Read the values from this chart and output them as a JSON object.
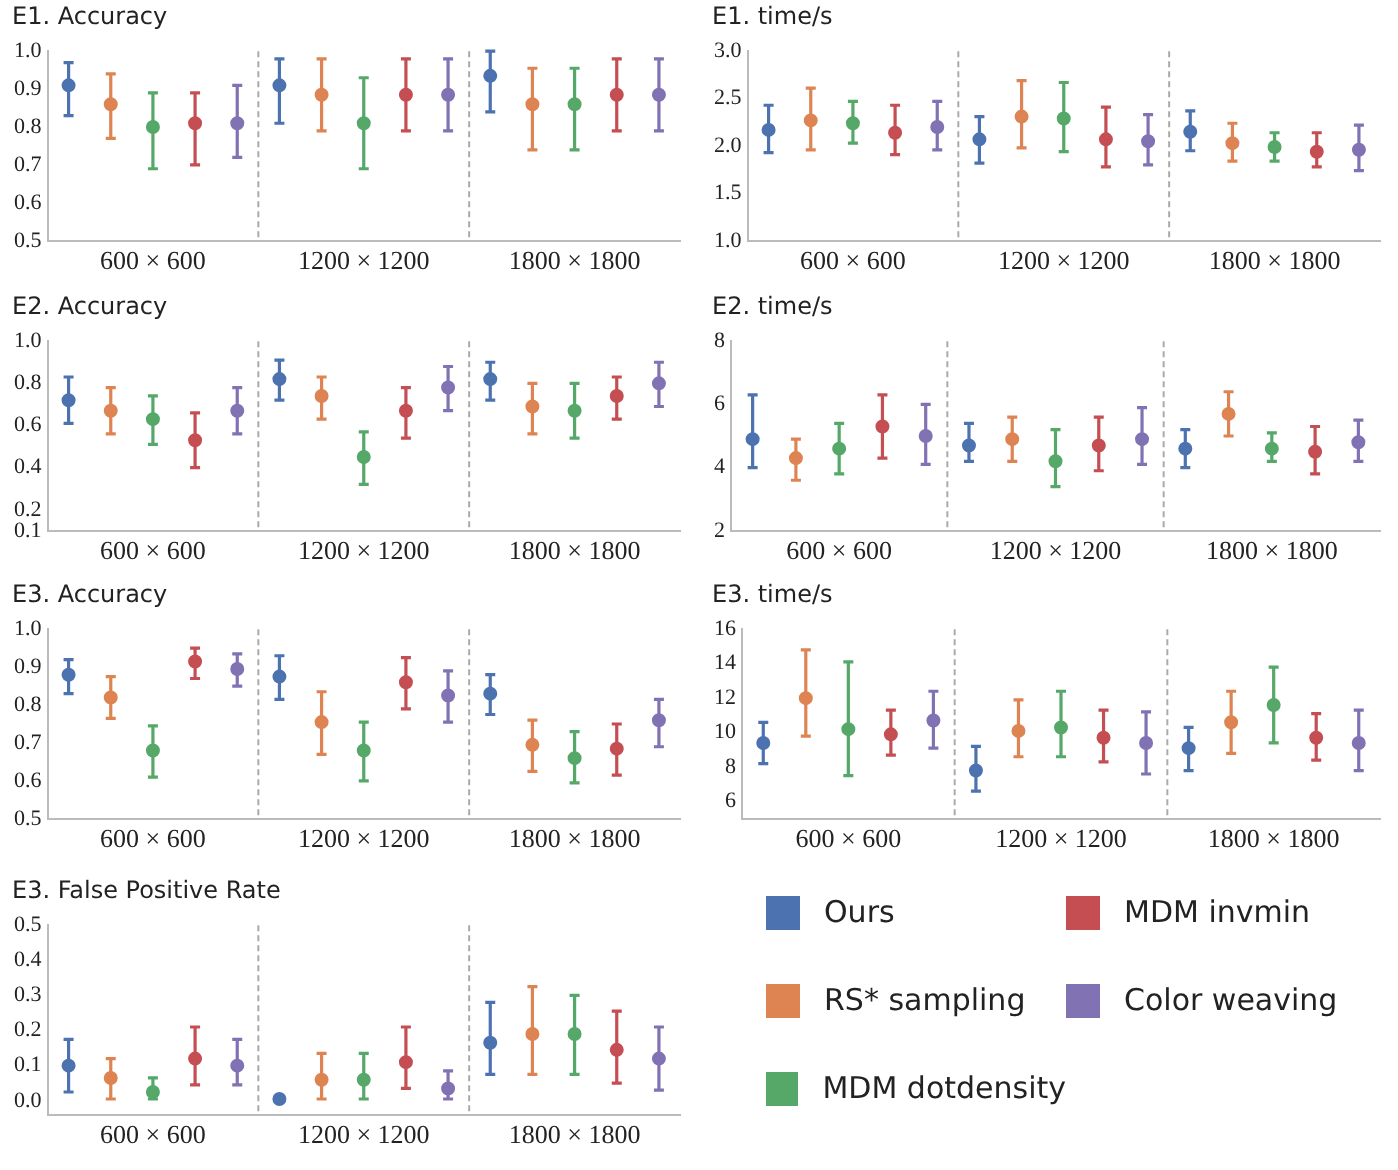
{
  "chart_data": [
    {
      "type": "scatter",
      "title": "E1. Accuracy",
      "categories": [
        "600 × 600",
        "1200 × 1200",
        "1800 × 1800"
      ],
      "marker": "circle",
      "ylim": [
        0.5,
        1.0
      ],
      "yticks": [
        0.5,
        0.6,
        0.7,
        0.8,
        0.9,
        {
          "value": 1,
          "label": "1.0"
        }
      ],
      "series": [
        {
          "color": "#4c72b0",
          "values": [
            0.91,
            0.91,
            0.935
          ],
          "errors": [
            [
              0.83,
              0.97
            ],
            [
              0.81,
              0.98
            ],
            [
              0.84,
              1.0
            ]
          ]
        },
        {
          "color": "#dd8452",
          "values": [
            0.86,
            0.885,
            0.86
          ],
          "errors": [
            [
              0.77,
              0.94
            ],
            [
              0.79,
              0.98
            ],
            [
              0.74,
              0.955
            ]
          ]
        },
        {
          "color": "#55a868",
          "values": [
            0.8,
            0.81,
            0.86
          ],
          "errors": [
            [
              0.69,
              0.89
            ],
            [
              0.69,
              0.93
            ],
            [
              0.74,
              0.955
            ]
          ]
        },
        {
          "color": "#c44e52",
          "values": [
            0.81,
            0.885,
            0.885
          ],
          "errors": [
            [
              0.7,
              0.89
            ],
            [
              0.79,
              0.98
            ],
            [
              0.79,
              0.98
            ]
          ]
        },
        {
          "color": "#8172b3",
          "values": [
            0.81,
            0.885,
            0.885
          ],
          "errors": [
            [
              0.72,
              0.91
            ],
            [
              0.79,
              0.98
            ],
            [
              0.79,
              0.98
            ]
          ]
        }
      ]
    },
    {
      "type": "scatter",
      "title": "E1. time/s",
      "categories": [
        "600 × 600",
        "1200 × 1200",
        "1800 × 1800"
      ],
      "marker": "circle",
      "ylim": [
        1.0,
        3.0
      ],
      "yticks": [
        {
          "value": 1,
          "label": "1.0"
        },
        1.5,
        {
          "value": 2,
          "label": "2.0"
        },
        2.5,
        {
          "value": 3,
          "label": "3.0"
        }
      ],
      "series": [
        {
          "color": "#4c72b0",
          "values": [
            2.17,
            2.07,
            2.15
          ],
          "errors": [
            [
              1.93,
              2.43
            ],
            [
              1.82,
              2.31
            ],
            [
              1.95,
              2.37
            ]
          ]
        },
        {
          "color": "#dd8452",
          "values": [
            2.27,
            2.31,
            2.03
          ],
          "errors": [
            [
              1.96,
              2.61
            ],
            [
              1.98,
              2.69
            ],
            [
              1.84,
              2.24
            ]
          ]
        },
        {
          "color": "#55a868",
          "values": [
            2.24,
            2.29,
            1.99
          ],
          "errors": [
            [
              2.03,
              2.47
            ],
            [
              1.94,
              2.67
            ],
            [
              1.84,
              2.14
            ]
          ]
        },
        {
          "color": "#c44e52",
          "values": [
            2.14,
            2.07,
            1.94
          ],
          "errors": [
            [
              1.91,
              2.43
            ],
            [
              1.78,
              2.41
            ],
            [
              1.78,
              2.14
            ]
          ]
        },
        {
          "color": "#8172b3",
          "values": [
            2.2,
            2.05,
            1.96
          ],
          "errors": [
            [
              1.96,
              2.47
            ],
            [
              1.8,
              2.33
            ],
            [
              1.74,
              2.22
            ]
          ]
        }
      ]
    },
    {
      "type": "scatter",
      "title": "E2. Accuracy",
      "categories": [
        "600 × 600",
        "1200 × 1200",
        "1800 × 1800"
      ],
      "marker": "circle",
      "ylim": [
        0.1,
        1.0
      ],
      "yticks": [
        0.1,
        0.2,
        0.4,
        0.6,
        0.8,
        {
          "value": 1,
          "label": "1.0"
        }
      ],
      "series": [
        {
          "color": "#4c72b0",
          "values": [
            0.72,
            0.82,
            0.82
          ],
          "errors": [
            [
              0.61,
              0.83
            ],
            [
              0.72,
              0.91
            ],
            [
              0.72,
              0.9
            ]
          ]
        },
        {
          "color": "#dd8452",
          "values": [
            0.67,
            0.74,
            0.69
          ],
          "errors": [
            [
              0.56,
              0.78
            ],
            [
              0.63,
              0.83
            ],
            [
              0.56,
              0.8
            ]
          ]
        },
        {
          "color": "#55a868",
          "values": [
            0.63,
            0.45,
            0.67
          ],
          "errors": [
            [
              0.51,
              0.74
            ],
            [
              0.32,
              0.57
            ],
            [
              0.54,
              0.8
            ]
          ]
        },
        {
          "color": "#c44e52",
          "values": [
            0.53,
            0.67,
            0.74
          ],
          "errors": [
            [
              0.4,
              0.66
            ],
            [
              0.54,
              0.78
            ],
            [
              0.63,
              0.83
            ]
          ]
        },
        {
          "color": "#8172b3",
          "values": [
            0.67,
            0.78,
            0.8
          ],
          "errors": [
            [
              0.56,
              0.78
            ],
            [
              0.67,
              0.88
            ],
            [
              0.69,
              0.9
            ]
          ]
        }
      ]
    },
    {
      "type": "scatter",
      "title": "E2. time/s",
      "categories": [
        "600 × 600",
        "1200 × 1200",
        "1800 × 1800"
      ],
      "marker": "circle",
      "ylim": [
        2,
        8
      ],
      "yticks": [
        2,
        4,
        6,
        8
      ],
      "series": [
        {
          "color": "#4c72b0",
          "values": [
            4.9,
            4.7,
            4.6
          ],
          "errors": [
            [
              4.0,
              6.3
            ],
            [
              4.2,
              5.4
            ],
            [
              4.0,
              5.2
            ]
          ]
        },
        {
          "color": "#dd8452",
          "values": [
            4.3,
            4.9,
            5.7
          ],
          "errors": [
            [
              3.6,
              4.9
            ],
            [
              4.2,
              5.6
            ],
            [
              5.0,
              6.4
            ]
          ]
        },
        {
          "color": "#55a868",
          "values": [
            4.6,
            4.2,
            4.6
          ],
          "errors": [
            [
              3.8,
              5.4
            ],
            [
              3.4,
              5.2
            ],
            [
              4.2,
              5.1
            ]
          ]
        },
        {
          "color": "#c44e52",
          "values": [
            5.3,
            4.7,
            4.5
          ],
          "errors": [
            [
              4.3,
              6.3
            ],
            [
              3.9,
              5.6
            ],
            [
              3.8,
              5.3
            ]
          ]
        },
        {
          "color": "#8172b3",
          "values": [
            5.0,
            4.9,
            4.8
          ],
          "errors": [
            [
              4.1,
              6.0
            ],
            [
              4.1,
              5.9
            ],
            [
              4.2,
              5.5
            ]
          ]
        }
      ]
    },
    {
      "type": "scatter",
      "title": "E3. Accuracy",
      "categories": [
        "600 × 600",
        "1200 × 1200",
        "1800 × 1800"
      ],
      "marker": "circle",
      "ylim": [
        0.5,
        1.0
      ],
      "yticks": [
        0.5,
        0.6,
        0.7,
        0.8,
        0.9,
        {
          "value": 1,
          "label": "1.0"
        }
      ],
      "series": [
        {
          "color": "#4c72b0",
          "values": [
            0.88,
            0.875,
            0.83
          ],
          "errors": [
            [
              0.83,
              0.92
            ],
            [
              0.815,
              0.93
            ],
            [
              0.775,
              0.88
            ]
          ]
        },
        {
          "color": "#dd8452",
          "values": [
            0.82,
            0.755,
            0.695
          ],
          "errors": [
            [
              0.765,
              0.875
            ],
            [
              0.67,
              0.835
            ],
            [
              0.625,
              0.76
            ]
          ]
        },
        {
          "color": "#55a868",
          "values": [
            0.68,
            0.68,
            0.66
          ],
          "errors": [
            [
              0.61,
              0.745
            ],
            [
              0.6,
              0.755
            ],
            [
              0.595,
              0.73
            ]
          ]
        },
        {
          "color": "#c44e52",
          "values": [
            0.915,
            0.86,
            0.685
          ],
          "errors": [
            [
              0.87,
              0.95
            ],
            [
              0.79,
              0.925
            ],
            [
              0.615,
              0.75
            ]
          ]
        },
        {
          "color": "#8172b3",
          "values": [
            0.895,
            0.825,
            0.76
          ],
          "errors": [
            [
              0.85,
              0.935
            ],
            [
              0.755,
              0.89
            ],
            [
              0.69,
              0.815
            ]
          ]
        }
      ]
    },
    {
      "type": "scatter",
      "title": "E3. time/s",
      "categories": [
        "600 × 600",
        "1200 × 1200",
        "1800 × 1800"
      ],
      "marker": "circle",
      "ylim": [
        5,
        16
      ],
      "yticks": [
        6,
        8,
        10,
        12,
        14,
        16
      ],
      "series": [
        {
          "color": "#4c72b0",
          "values": [
            9.4,
            7.8,
            9.1
          ],
          "errors": [
            [
              8.2,
              10.6
            ],
            [
              6.6,
              9.2
            ],
            [
              7.8,
              10.3
            ]
          ]
        },
        {
          "color": "#dd8452",
          "values": [
            12.0,
            10.1,
            10.6
          ],
          "errors": [
            [
              9.8,
              14.8
            ],
            [
              8.6,
              11.9
            ],
            [
              8.8,
              12.4
            ]
          ]
        },
        {
          "color": "#55a868",
          "values": [
            10.2,
            10.3,
            11.6
          ],
          "errors": [
            [
              7.5,
              14.1
            ],
            [
              8.6,
              12.4
            ],
            [
              9.4,
              13.8
            ]
          ]
        },
        {
          "color": "#c44e52",
          "values": [
            9.9,
            9.7,
            9.7
          ],
          "errors": [
            [
              8.7,
              11.3
            ],
            [
              8.3,
              11.3
            ],
            [
              8.4,
              11.1
            ]
          ]
        },
        {
          "color": "#8172b3",
          "values": [
            10.7,
            9.4,
            9.4
          ],
          "errors": [
            [
              9.1,
              12.4
            ],
            [
              7.6,
              11.2
            ],
            [
              7.8,
              11.3
            ]
          ]
        }
      ]
    },
    {
      "type": "scatter",
      "title": "E3. False Positive Rate",
      "categories": [
        "600 × 600",
        "1200 × 1200",
        "1800 × 1800"
      ],
      "marker": "circle",
      "legend": "right",
      "ylim": [
        -0.04,
        0.5
      ],
      "yticks": [
        {
          "value": 0,
          "label": "0.0"
        },
        0.1,
        0.2,
        0.3,
        0.4,
        0.5
      ],
      "series": [
        {
          "name": "Ours",
          "color": "#4c72b0",
          "values": [
            0.1,
            0.005,
            0.165
          ],
          "errors": [
            [
              0.025,
              0.175
            ],
            null,
            [
              0.075,
              0.28
            ]
          ]
        },
        {
          "name": "RS* sampling",
          "color": "#dd8452",
          "values": [
            0.065,
            0.06,
            0.19
          ],
          "errors": [
            [
              0.005,
              0.12
            ],
            [
              0.005,
              0.135
            ],
            [
              0.075,
              0.325
            ]
          ]
        },
        {
          "name": "MDM dotdensity",
          "color": "#55a868",
          "values": [
            0.025,
            0.06,
            0.19
          ],
          "errors": [
            [
              0.005,
              0.065
            ],
            [
              0.005,
              0.135
            ],
            [
              0.075,
              0.3
            ]
          ]
        },
        {
          "name": "MDM invmin",
          "color": "#c44e52",
          "values": [
            0.12,
            0.11,
            0.145
          ],
          "errors": [
            [
              0.045,
              0.21
            ],
            [
              0.035,
              0.21
            ],
            [
              0.05,
              0.255
            ]
          ]
        },
        {
          "name": "Color weaving",
          "color": "#8172b3",
          "values": [
            0.1,
            0.035,
            0.12
          ],
          "errors": [
            [
              0.045,
              0.175
            ],
            [
              0.005,
              0.085
            ],
            [
              0.03,
              0.21
            ]
          ]
        }
      ]
    }
  ]
}
